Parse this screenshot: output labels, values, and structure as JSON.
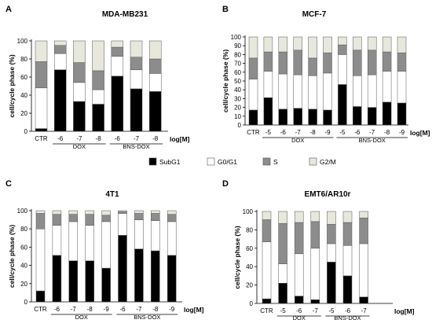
{
  "legend": {
    "items": [
      {
        "label": "SubG1",
        "color": "#000000"
      },
      {
        "label": "G0/G1",
        "color": "#ffffff"
      },
      {
        "label": "S",
        "color": "#8c8c8c"
      },
      {
        "label": "G2/M",
        "color": "#e7e7dc"
      }
    ]
  },
  "chart_data": [
    {
      "type": "bar",
      "stacked": true,
      "panel": "A",
      "title": "MDA-MB231",
      "ylabel": "cell/cycle phase (%)",
      "unit_label": "log[M]",
      "ylim": [
        0,
        100
      ],
      "yticks": [
        0,
        20,
        40,
        60,
        80,
        100
      ],
      "categories": [
        "CTR",
        "-6",
        "-7",
        "-8",
        "-6",
        "-7",
        "-8"
      ],
      "groups": [
        {
          "label": "DOX",
          "from": 1,
          "to": 3
        },
        {
          "label": "BNS-DOX",
          "from": 4,
          "to": 6
        }
      ],
      "series": [
        {
          "name": "SubG1",
          "values": [
            3,
            68,
            33,
            30,
            61,
            47,
            44
          ]
        },
        {
          "name": "G0/G1",
          "values": [
            45,
            18,
            21,
            16,
            22,
            21,
            20
          ]
        },
        {
          "name": "S",
          "values": [
            29,
            9,
            22,
            21,
            10,
            14,
            16
          ]
        },
        {
          "name": "G2/M",
          "values": [
            23,
            5,
            24,
            33,
            7,
            18,
            20
          ]
        }
      ]
    },
    {
      "type": "bar",
      "stacked": true,
      "panel": "B",
      "title": "MCF-7",
      "ylabel": "cell/cycle phase (%)",
      "unit_label": "log[M]",
      "ylim": [
        0,
        100
      ],
      "yticks": [
        0,
        10,
        20,
        30,
        40,
        50,
        60,
        70,
        80,
        90,
        100
      ],
      "categories": [
        "CTR",
        "-5",
        "-6",
        "-7",
        "-8",
        "-9",
        "-5",
        "-6",
        "-7",
        "-8",
        "-9"
      ],
      "groups": [
        {
          "label": "DOX",
          "from": 1,
          "to": 5
        },
        {
          "label": "BNS-DOX",
          "from": 6,
          "to": 10
        }
      ],
      "series": [
        {
          "name": "SubG1",
          "values": [
            17,
            31,
            18,
            19,
            18,
            17,
            46,
            21,
            20,
            26,
            25
          ]
        },
        {
          "name": "G0/G1",
          "values": [
            35,
            30,
            40,
            38,
            38,
            42,
            34,
            35,
            37,
            35,
            36
          ]
        },
        {
          "name": "S",
          "values": [
            24,
            22,
            25,
            28,
            20,
            23,
            11,
            29,
            28,
            22,
            21
          ]
        },
        {
          "name": "G2/M",
          "values": [
            24,
            17,
            17,
            15,
            24,
            18,
            9,
            15,
            15,
            17,
            18
          ]
        }
      ]
    },
    {
      "type": "bar",
      "stacked": true,
      "panel": "C",
      "title": "4T1",
      "ylabel": "cell/cycle phase (%)",
      "unit_label": "log[M]",
      "ylim": [
        0,
        100
      ],
      "yticks": [
        0,
        20,
        40,
        60,
        80,
        100
      ],
      "categories": [
        "CTR",
        "-6",
        "-7",
        "-8",
        "-9",
        "-6",
        "-7",
        "-8",
        "-9"
      ],
      "groups": [
        {
          "label": "DOX",
          "from": 1,
          "to": 4
        },
        {
          "label": "BNS-DOX",
          "from": 5,
          "to": 8
        }
      ],
      "series": [
        {
          "name": "SubG1",
          "values": [
            12,
            51,
            45,
            45,
            37,
            73,
            58,
            56,
            51
          ]
        },
        {
          "name": "G0/G1",
          "values": [
            68,
            33,
            43,
            39,
            51,
            24,
            32,
            33,
            37
          ]
        },
        {
          "name": "S",
          "values": [
            17,
            12,
            8,
            12,
            7,
            2,
            7,
            8,
            8
          ]
        },
        {
          "name": "G2/M",
          "values": [
            3,
            4,
            4,
            4,
            5,
            1,
            3,
            3,
            4
          ]
        }
      ]
    },
    {
      "type": "bar",
      "stacked": true,
      "panel": "D",
      "title": "EMT6/AR10r",
      "ylabel": "cell/cycle phase (%)",
      "unit_label": "log[M]",
      "ylim": [
        0,
        100
      ],
      "yticks": [
        0,
        20,
        40,
        60,
        80,
        100
      ],
      "categories": [
        "CTR",
        "-5",
        "-6",
        "-7",
        "-5",
        "-6",
        "-7"
      ],
      "groups": [
        {
          "label": "DOX",
          "from": 1,
          "to": 3
        },
        {
          "label": "BNS-DOX",
          "from": 4,
          "to": 6
        }
      ],
      "series": [
        {
          "name": "SubG1",
          "values": [
            5,
            22,
            8,
            4,
            45,
            30,
            7
          ]
        },
        {
          "name": "G0/G1",
          "values": [
            62,
            21,
            46,
            56,
            20,
            33,
            58
          ]
        },
        {
          "name": "S",
          "values": [
            24,
            44,
            34,
            29,
            21,
            25,
            28
          ]
        },
        {
          "name": "G2/M",
          "values": [
            9,
            13,
            12,
            11,
            14,
            12,
            7
          ]
        }
      ]
    }
  ]
}
